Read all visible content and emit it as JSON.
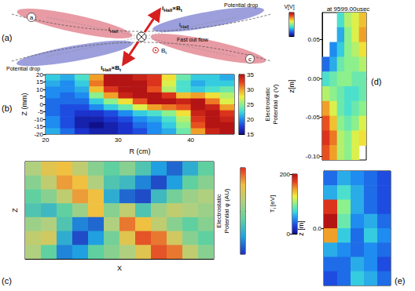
{
  "diagram": {
    "letter": "(a)",
    "potential_drop": [
      "Potential drop",
      "Potential drop"
    ],
    "hall_force": [
      [
        {
          "t": "i"
        },
        {
          "t": "Hall",
          "sub": true
        },
        {
          "t": "×B"
        },
        {
          "t": "t",
          "sub": true
        }
      ],
      [
        {
          "t": "i"
        },
        {
          "t": "Hall",
          "sub": true
        },
        {
          "t": "×B"
        },
        {
          "t": "t",
          "sub": true
        }
      ]
    ],
    "hall_current": [
      [
        {
          "t": "i"
        },
        {
          "t": "Hall",
          "sub": true
        }
      ],
      [
        {
          "t": "i"
        },
        {
          "t": "Hall",
          "sub": true
        }
      ]
    ],
    "outflow": "Fast out flow",
    "field": [
      {
        "t": "B"
      },
      {
        "t": "t",
        "sub": true
      }
    ],
    "points": [
      "a",
      "c"
    ]
  },
  "chart_data": [
    {
      "type": "heatmap",
      "letter": "(b)",
      "xlabel": "R (cm)",
      "ylabel": "Z (mm)",
      "xlim": [
        20,
        46
      ],
      "ylim": [
        -20,
        20
      ],
      "xticks": [
        20,
        30,
        40
      ],
      "yticks": [
        -20,
        -15,
        -10,
        -5,
        0,
        5,
        10,
        15,
        20
      ],
      "x": [
        21,
        23,
        25,
        27,
        29,
        31,
        33,
        35,
        37,
        39,
        41,
        43,
        45
      ],
      "y": [
        18,
        14,
        10,
        6,
        2,
        -2,
        -6,
        -10,
        -14,
        -18
      ],
      "cells": [
        [
          22,
          21,
          23,
          30,
          35,
          35,
          34,
          33,
          28,
          24,
          22,
          22,
          21
        ],
        [
          21,
          20,
          22,
          31,
          35,
          35,
          35,
          33,
          27,
          23,
          21,
          22,
          22
        ],
        [
          20,
          20,
          21,
          29,
          33,
          35,
          35,
          32,
          26,
          23,
          22,
          23,
          24
        ],
        [
          20,
          19,
          20,
          25,
          30,
          34,
          35,
          35,
          33,
          29,
          30,
          28,
          26
        ],
        [
          19,
          19,
          19,
          22,
          25,
          28,
          32,
          35,
          35,
          34,
          35,
          31,
          27
        ],
        [
          19,
          18,
          18,
          20,
          22,
          24,
          27,
          30,
          31,
          32,
          35,
          34,
          30
        ],
        [
          19,
          18,
          17,
          17,
          18,
          20,
          22,
          23,
          25,
          28,
          34,
          35,
          33
        ],
        [
          20,
          18,
          16,
          16,
          17,
          18,
          20,
          21,
          23,
          26,
          33,
          35,
          34
        ],
        [
          20,
          18,
          16,
          15,
          16,
          17,
          19,
          20,
          22,
          25,
          32,
          35,
          35
        ],
        [
          21,
          19,
          17,
          16,
          16,
          17,
          18,
          20,
          21,
          24,
          30,
          34,
          35
        ]
      ],
      "colorbar": {
        "label": "Electrostatic Potential φ (V)",
        "range": [
          15,
          35
        ],
        "ticks": [
          15,
          20,
          25,
          30,
          35
        ]
      }
    },
    {
      "type": "heatmap",
      "letter": "(c)",
      "xlabel": "X",
      "ylabel": "Z",
      "tick_labels": false,
      "cells": [
        [
          0.2,
          0.5,
          0.6,
          0.3,
          0.0,
          -0.2,
          0.0,
          -0.3,
          -0.6,
          -0.8,
          -0.5,
          -0.2
        ],
        [
          0.0,
          0.3,
          0.7,
          0.6,
          0.2,
          -0.3,
          -0.4,
          -0.7,
          -0.9,
          -0.6,
          -0.2,
          0.0
        ],
        [
          -0.2,
          0.0,
          0.3,
          0.7,
          0.6,
          -0.5,
          -0.8,
          -0.9,
          -0.4,
          -0.1,
          0.1,
          0.2
        ],
        [
          -0.3,
          -0.4,
          -0.2,
          0.1,
          0.6,
          0.0,
          0.3,
          -0.3,
          0.1,
          0.3,
          0.2,
          0.1
        ],
        [
          0.1,
          0.2,
          -0.3,
          -0.7,
          -0.8,
          0.2,
          0.8,
          0.6,
          0.3,
          0.0,
          -0.2,
          0.0
        ],
        [
          0.3,
          0.4,
          -0.5,
          -0.9,
          -0.6,
          -0.1,
          0.5,
          0.9,
          0.8,
          0.4,
          0.0,
          -0.2
        ],
        [
          0.2,
          -0.2,
          -0.7,
          -0.6,
          -0.2,
          0.0,
          0.2,
          0.5,
          0.9,
          0.8,
          0.3,
          0.0
        ]
      ],
      "colorbar": {
        "label": "Electrostatic Potential φ (AU)",
        "range": [
          -1,
          1
        ]
      }
    },
    {
      "type": "heatmap",
      "letter": "(d)",
      "title": "at 9599.00usec",
      "ylabel": "z[m]",
      "tick_labels": "y",
      "ylim": [
        -0.105,
        0.085
      ],
      "yticks": [
        {
          "value": -0.1,
          "label": "-0.10"
        },
        -0.05,
        {
          "value": 0,
          "label": "0.00"
        },
        0.05
      ],
      "cells": [
        [
          null,
          null,
          40,
          55,
          60,
          70
        ],
        [
          null,
          null,
          30,
          50,
          60,
          75
        ],
        [
          null,
          25,
          35,
          50,
          55,
          65
        ],
        [
          20,
          30,
          45,
          50,
          50,
          55
        ],
        [
          40,
          45,
          50,
          50,
          45,
          45
        ],
        [
          55,
          50,
          45,
          40,
          40,
          45
        ],
        [
          75,
          60,
          45,
          40,
          45,
          50
        ],
        [
          85,
          70,
          50,
          45,
          50,
          60
        ],
        [
          90,
          80,
          55,
          50,
          60,
          65
        ],
        [
          85,
          75,
          55,
          50,
          60,
          null
        ]
      ],
      "colorbar": {
        "label": "V[V]",
        "range": [
          0,
          100
        ]
      }
    },
    {
      "type": "heatmap",
      "letter": "(e)",
      "ylabel": "z [m]",
      "tick_labels": "y",
      "ylim": [
        -0.15,
        0.15
      ],
      "yticks": [
        {
          "value": 0,
          "label": "0.0"
        }
      ],
      "cells": [
        [
          40,
          60,
          50,
          40,
          30
        ],
        [
          60,
          80,
          60,
          40,
          30
        ],
        [
          180,
          100,
          60,
          40,
          30
        ],
        [
          200,
          90,
          50,
          60,
          40
        ],
        [
          150,
          70,
          40,
          70,
          50
        ],
        [
          60,
          50,
          40,
          50,
          40
        ],
        [
          40,
          40,
          60,
          50,
          30
        ],
        [
          30,
          40,
          70,
          60,
          40
        ]
      ],
      "colorbar": {
        "label": [
          {
            "t": "T"
          },
          {
            "t": "i",
            "sub": true
          },
          {
            "t": " [eV]"
          }
        ],
        "range": [
          0,
          200
        ],
        "ticks": [
          0,
          200
        ]
      }
    }
  ]
}
